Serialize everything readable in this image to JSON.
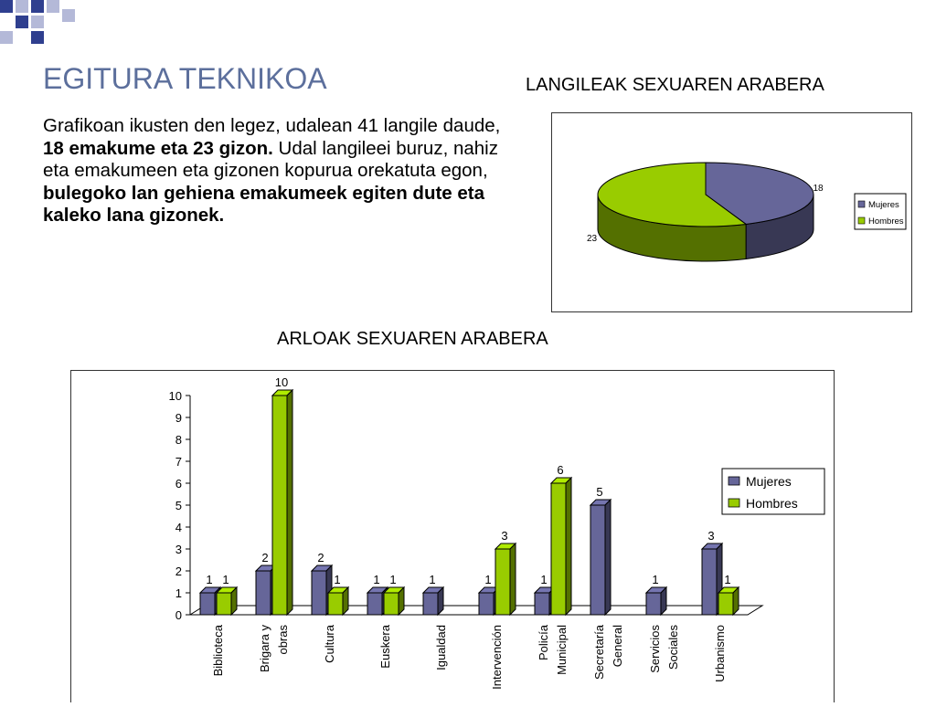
{
  "slide": {
    "title": "EGITURA TEKNIKOA",
    "paragraph": {
      "p1": "Grafikoan ikusten den legez, udalean 41 langile daude, ",
      "b1": "18 emakume eta 23 gizon.",
      "p2": " Udal langileei buruz, nahiz eta emakumeen eta gizonen kopurua orekatuta egon, ",
      "b2": "bulegoko lan gehiena emakumeek egiten dute eta kaleko lana gizonek."
    }
  },
  "colors": {
    "mujeres": "#666699",
    "hombres": "#99cc00",
    "title": "#5c6f9c",
    "deco_dark": "#2f3f8f",
    "deco_light": "#b4b9d8"
  },
  "chart_data": [
    {
      "type": "pie",
      "title": "LANGILEAK SEXUAREN ARABERA",
      "three_d": true,
      "legend_position": "right",
      "legend": [
        "Mujeres",
        "Hombres"
      ],
      "slices": [
        {
          "label": "Mujeres",
          "value": 18,
          "value_label": "18"
        },
        {
          "label": "Hombres",
          "value": 23,
          "value_label": "23"
        }
      ]
    },
    {
      "type": "bar",
      "title": "ARLOAK SEXUAREN ARABERA",
      "three_d": true,
      "legend_position": "right",
      "ylim": [
        0,
        10
      ],
      "yticks": [
        "0",
        "1",
        "2",
        "3",
        "4",
        "5",
        "6",
        "7",
        "8",
        "9",
        "10"
      ],
      "categories": [
        {
          "lines": [
            "Biblioteca"
          ]
        },
        {
          "lines": [
            "Brigara y",
            "obras"
          ]
        },
        {
          "lines": [
            "Cultura"
          ]
        },
        {
          "lines": [
            "Euskera"
          ]
        },
        {
          "lines": [
            "Igualdad"
          ]
        },
        {
          "lines": [
            "Intervención"
          ]
        },
        {
          "lines": [
            "Policía",
            "Municipal"
          ]
        },
        {
          "lines": [
            "Secretaría",
            "General"
          ]
        },
        {
          "lines": [
            "Servicios",
            "Sociales"
          ]
        },
        {
          "lines": [
            "Urbanismo"
          ]
        }
      ],
      "series": [
        {
          "name": "Mujeres",
          "values": [
            1,
            2,
            2,
            1,
            1,
            1,
            1,
            5,
            1,
            3
          ]
        },
        {
          "name": "Hombres",
          "values": [
            1,
            10,
            1,
            1,
            null,
            3,
            6,
            null,
            null,
            1
          ]
        }
      ]
    }
  ]
}
